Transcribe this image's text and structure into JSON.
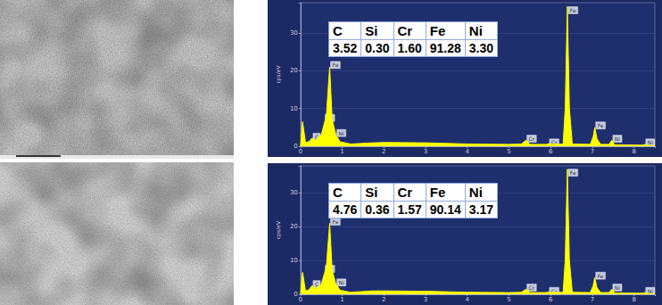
{
  "chart_data": [
    {
      "type": "line",
      "ylabel": "cps/eV",
      "color": "#ffff00",
      "x": [
        0,
        0.05,
        0.12,
        0.2,
        0.28,
        0.35,
        0.5,
        0.57,
        0.62,
        0.7,
        0.76,
        0.85,
        0.95,
        1.2,
        1.74,
        2,
        3,
        4,
        5,
        5.3,
        5.41,
        5.5,
        5.9,
        5.95,
        6.05,
        6.3,
        6.35,
        6.4,
        6.45,
        6.52,
        6.95,
        7.02,
        7.06,
        7.11,
        7.2,
        7.4,
        7.47,
        7.53,
        8.2,
        8.26,
        8.32,
        8.5
      ],
      "values": [
        0,
        6.5,
        1,
        1.2,
        2.2,
        1.5,
        3,
        6,
        8,
        21,
        7,
        3,
        1.2,
        0.6,
        0.9,
        1,
        0.9,
        0.6,
        0.5,
        0.6,
        1.6,
        0.5,
        0.5,
        0.7,
        0.5,
        0.6,
        10,
        37,
        10,
        0.6,
        0.5,
        2.5,
        5,
        2,
        0.5,
        0.5,
        1.6,
        0.4,
        0.3,
        0.5,
        0.2,
        0.2
      ],
      "xlim": [
        0,
        8.5
      ],
      "xticks": [
        0,
        1,
        2,
        3,
        4,
        5,
        6,
        7,
        8
      ],
      "ylim": [
        0,
        38
      ],
      "yticks": [
        0,
        10,
        20,
        30
      ],
      "annotations": [
        {
          "text": "C",
          "x": 0.28,
          "y": 2.5
        },
        {
          "text": "Cr",
          "x": 0.57,
          "y": 7.5
        },
        {
          "text": "Fe",
          "x": 0.7,
          "y": 21.5
        },
        {
          "text": "Ni",
          "x": 0.85,
          "y": 3.5
        },
        {
          "text": "Cr",
          "x": 5.41,
          "y": 2
        },
        {
          "text": "Cr",
          "x": 5.95,
          "y": 1
        },
        {
          "text": "Fe",
          "x": 6.4,
          "y": 36
        },
        {
          "text": "Fe",
          "x": 7.06,
          "y": 5.5
        },
        {
          "text": "Ni",
          "x": 7.47,
          "y": 2
        },
        {
          "text": "Ni",
          "x": 8.26,
          "y": 1
        }
      ],
      "table": {
        "header": [
          "C",
          "Si",
          "Cr",
          "Fe",
          "Ni"
        ],
        "rows": [
          [
            "3.52",
            "0.30",
            "1.60",
            "91.28",
            "3.30"
          ]
        ]
      }
    },
    {
      "type": "line",
      "ylabel": "cps/eV",
      "color": "#ffff00",
      "x": [
        0,
        0.05,
        0.12,
        0.2,
        0.28,
        0.35,
        0.5,
        0.57,
        0.62,
        0.7,
        0.76,
        0.85,
        0.95,
        1.2,
        1.74,
        2,
        3,
        4,
        5,
        5.3,
        5.41,
        5.5,
        5.9,
        5.95,
        6.05,
        6.3,
        6.35,
        6.4,
        6.45,
        6.52,
        6.95,
        7.02,
        7.06,
        7.11,
        7.2,
        7.4,
        7.47,
        7.53,
        8.2,
        8.26,
        8.32,
        8.5
      ],
      "values": [
        0,
        6.5,
        1,
        1.3,
        2.6,
        1.6,
        3,
        6,
        8,
        21,
        7,
        3,
        1.2,
        0.6,
        1,
        1,
        0.9,
        0.6,
        0.5,
        0.6,
        1.5,
        0.5,
        0.5,
        0.7,
        0.5,
        0.6,
        10,
        37,
        10,
        0.6,
        0.5,
        2.5,
        5,
        2,
        0.5,
        0.5,
        1.5,
        0.4,
        0.3,
        0.5,
        0.2,
        0.2
      ],
      "xlim": [
        0,
        8.5
      ],
      "xticks": [
        0,
        1,
        2,
        3,
        4,
        5,
        6,
        7,
        8
      ],
      "ylim": [
        0,
        38
      ],
      "yticks": [
        0,
        10,
        20,
        30
      ],
      "annotations": [
        {
          "text": "C",
          "x": 0.28,
          "y": 3
        },
        {
          "text": "Cr",
          "x": 0.57,
          "y": 7.5
        },
        {
          "text": "Fe",
          "x": 0.7,
          "y": 21.5
        },
        {
          "text": "Ni",
          "x": 0.85,
          "y": 3.5
        },
        {
          "text": "Cr",
          "x": 5.41,
          "y": 2
        },
        {
          "text": "Cr",
          "x": 5.95,
          "y": 1
        },
        {
          "text": "Fe",
          "x": 6.4,
          "y": 36
        },
        {
          "text": "Fe",
          "x": 7.06,
          "y": 5.5
        },
        {
          "text": "Ni",
          "x": 7.47,
          "y": 2
        },
        {
          "text": "Ni",
          "x": 8.26,
          "y": 1
        }
      ],
      "table": {
        "header": [
          "C",
          "Si",
          "Cr",
          "Fe",
          "Ni"
        ],
        "rows": [
          [
            "4.76",
            "0.36",
            "1.57",
            "90.14",
            "3.17"
          ]
        ]
      }
    }
  ]
}
